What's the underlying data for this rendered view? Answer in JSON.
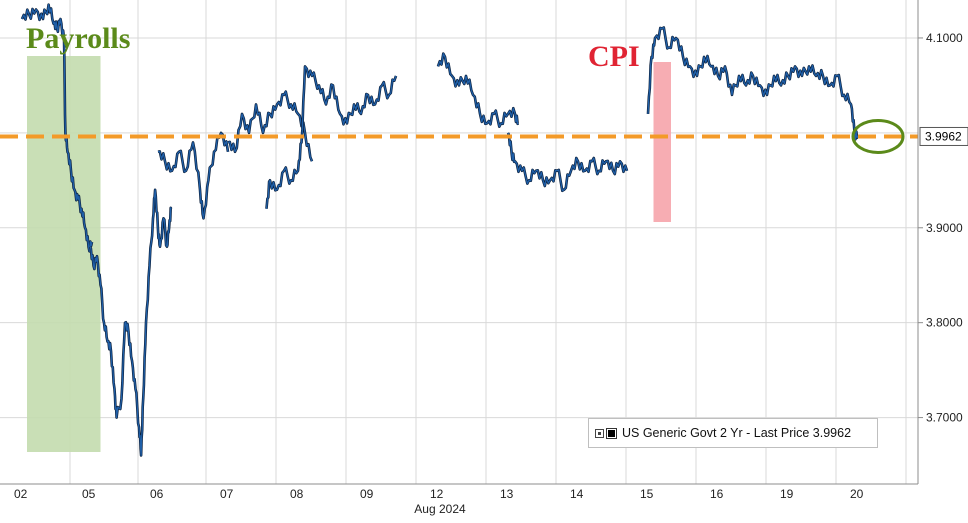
{
  "chart_data": {
    "type": "line",
    "title": "",
    "xlabel": "Aug 2024",
    "ylabel": "",
    "ylim": [
      3.63,
      4.14
    ],
    "y_ticks": [
      3.7,
      3.8,
      3.9,
      4.0,
      4.1
    ],
    "y_tick_labels": [
      "3.7000",
      "3.8000",
      "3.9000",
      "",
      "4.1000"
    ],
    "x_categories": [
      "02",
      "05",
      "06",
      "07",
      "08",
      "09",
      "12",
      "13",
      "14",
      "15",
      "16",
      "19",
      "20"
    ],
    "grid": true,
    "legend_position": "bottom-right",
    "series": [
      {
        "name": "US Generic Govt 2 Yr - Last Price 3.9962",
        "color": "#1f5fa8",
        "segments": [
          {
            "day": 0,
            "points": [
              [
                0.0,
                4.12
              ],
              [
                0.1,
                4.125
              ],
              [
                0.2,
                4.13
              ],
              [
                0.3,
                4.12
              ],
              [
                0.38,
                4.135
              ],
              [
                0.45,
                4.115
              ],
              [
                0.5,
                4.11
              ],
              [
                0.55,
                4.12
              ],
              [
                0.6,
                4.1
              ],
              [
                0.62,
                4.0
              ],
              [
                0.65,
                3.98
              ],
              [
                0.7,
                3.96
              ],
              [
                0.75,
                3.94
              ],
              [
                0.8,
                3.93
              ],
              [
                0.85,
                3.92
              ],
              [
                0.9,
                3.9
              ],
              [
                0.95,
                3.88
              ],
              [
                1.0,
                3.885
              ]
            ]
          },
          {
            "day": 1,
            "points": [
              [
                0.0,
                3.88
              ],
              [
                0.05,
                3.86
              ],
              [
                0.1,
                3.87
              ],
              [
                0.15,
                3.84
              ],
              [
                0.2,
                3.8
              ],
              [
                0.25,
                3.78
              ],
              [
                0.3,
                3.77
              ],
              [
                0.35,
                3.73
              ],
              [
                0.38,
                3.7
              ],
              [
                0.45,
                3.72
              ],
              [
                0.5,
                3.8
              ],
              [
                0.55,
                3.79
              ],
              [
                0.6,
                3.76
              ],
              [
                0.65,
                3.73
              ],
              [
                0.7,
                3.69
              ],
              [
                0.73,
                3.66
              ],
              [
                0.76,
                3.72
              ],
              [
                0.8,
                3.8
              ],
              [
                0.85,
                3.86
              ],
              [
                0.9,
                3.91
              ],
              [
                0.93,
                3.94
              ],
              [
                0.97,
                3.9
              ],
              [
                1.0,
                3.88
              ],
              [
                1.05,
                3.91
              ],
              [
                1.1,
                3.88
              ],
              [
                1.13,
                3.9
              ],
              [
                1.16,
                3.92
              ]
            ]
          },
          {
            "day": 2,
            "points": [
              [
                0.0,
                3.98
              ],
              [
                0.1,
                3.97
              ],
              [
                0.2,
                3.96
              ],
              [
                0.3,
                3.98
              ],
              [
                0.4,
                3.96
              ],
              [
                0.5,
                3.99
              ],
              [
                0.6,
                3.94
              ],
              [
                0.65,
                3.91
              ],
              [
                0.72,
                3.95
              ],
              [
                0.8,
                3.98
              ],
              [
                0.9,
                4.0
              ],
              [
                1.0,
                3.98
              ]
            ]
          },
          {
            "day": 3,
            "points": [
              [
                0.0,
                3.99
              ],
              [
                0.1,
                3.98
              ],
              [
                0.2,
                4.02
              ],
              [
                0.3,
                4.0
              ],
              [
                0.4,
                4.03
              ],
              [
                0.5,
                4.0
              ],
              [
                0.6,
                4.02
              ],
              [
                0.7,
                4.03
              ],
              [
                0.8,
                4.04
              ],
              [
                0.9,
                4.03
              ],
              [
                1.0,
                4.02
              ],
              [
                1.1,
                4.0
              ],
              [
                1.2,
                3.97
              ]
            ]
          },
          {
            "day": 4,
            "points": [
              [
                -0.45,
                3.92
              ],
              [
                -0.4,
                3.95
              ],
              [
                -0.3,
                3.94
              ],
              [
                -0.2,
                3.96
              ],
              [
                -0.1,
                3.95
              ],
              [
                0.0,
                3.96
              ],
              [
                0.05,
                3.99
              ],
              [
                0.1,
                4.07
              ],
              [
                0.2,
                4.06
              ],
              [
                0.3,
                4.05
              ],
              [
                0.4,
                4.03
              ],
              [
                0.5,
                4.05
              ],
              [
                0.6,
                4.02
              ],
              [
                0.7,
                4.01
              ],
              [
                0.8,
                4.03
              ],
              [
                0.9,
                4.02
              ],
              [
                1.0,
                4.04
              ],
              [
                1.1,
                4.03
              ],
              [
                1.2,
                4.05
              ],
              [
                1.3,
                4.04
              ],
              [
                1.4,
                4.06
              ]
            ]
          },
          {
            "day": 6,
            "points": [
              [
                0.0,
                4.07
              ],
              [
                0.1,
                4.08
              ],
              [
                0.2,
                4.06
              ],
              [
                0.3,
                4.05
              ],
              [
                0.4,
                4.06
              ],
              [
                0.5,
                4.04
              ],
              [
                0.6,
                4.02
              ],
              [
                0.7,
                4.01
              ],
              [
                0.8,
                4.02
              ],
              [
                0.9,
                4.01
              ],
              [
                1.0,
                4.02
              ],
              [
                1.1,
                4.02
              ],
              [
                1.15,
                4.01
              ]
            ]
          },
          {
            "day": 7,
            "points": [
              [
                0.0,
                4.0
              ],
              [
                0.05,
                3.98
              ],
              [
                0.1,
                3.97
              ],
              [
                0.2,
                3.96
              ],
              [
                0.3,
                3.95
              ],
              [
                0.4,
                3.96
              ],
              [
                0.5,
                3.95
              ],
              [
                0.6,
                3.95
              ],
              [
                0.7,
                3.96
              ],
              [
                0.8,
                3.94
              ],
              [
                0.9,
                3.96
              ],
              [
                1.0,
                3.97
              ],
              [
                1.1,
                3.96
              ],
              [
                1.2,
                3.97
              ],
              [
                1.3,
                3.96
              ],
              [
                1.4,
                3.97
              ],
              [
                1.5,
                3.96
              ],
              [
                1.6,
                3.97
              ],
              [
                1.7,
                3.96
              ]
            ]
          },
          {
            "day": 9,
            "points": [
              [
                0.0,
                4.02
              ],
              [
                0.05,
                4.08
              ],
              [
                0.1,
                4.1
              ],
              [
                0.2,
                4.11
              ],
              [
                0.3,
                4.09
              ],
              [
                0.4,
                4.1
              ],
              [
                0.5,
                4.08
              ],
              [
                0.6,
                4.07
              ],
              [
                0.7,
                4.06
              ],
              [
                0.8,
                4.08
              ],
              [
                0.9,
                4.07
              ],
              [
                1.0,
                4.06
              ],
              [
                1.1,
                4.07
              ],
              [
                1.2,
                4.04
              ],
              [
                1.3,
                4.06
              ],
              [
                1.4,
                4.05
              ],
              [
                1.5,
                4.06
              ],
              [
                1.6,
                4.05
              ],
              [
                1.7,
                4.04
              ],
              [
                1.8,
                4.06
              ],
              [
                1.9,
                4.05
              ],
              [
                2.0,
                4.06
              ],
              [
                2.1,
                4.07
              ],
              [
                2.2,
                4.06
              ],
              [
                2.3,
                4.07
              ],
              [
                2.4,
                4.06
              ],
              [
                2.5,
                4.06
              ],
              [
                2.6,
                4.05
              ],
              [
                2.7,
                4.06
              ],
              [
                2.8,
                4.04
              ],
              [
                2.9,
                4.03
              ],
              [
                2.95,
                4.0
              ],
              [
                3.0,
                3.997
              ]
            ]
          }
        ]
      }
    ],
    "reference_line": {
      "value": 3.9962,
      "label": "3.9962",
      "color": "#f39a28"
    },
    "annotations": [
      {
        "text": "Payrolls",
        "color": "#5b8a1a",
        "shade": "#c3dcae",
        "from": 0.1,
        "to": 1.15
      },
      {
        "text": "CPI",
        "color": "#e02433",
        "shade": "#f6a4ab",
        "from": 9.05,
        "to": 9.3
      }
    ],
    "footnote": "Aug 2024"
  }
}
